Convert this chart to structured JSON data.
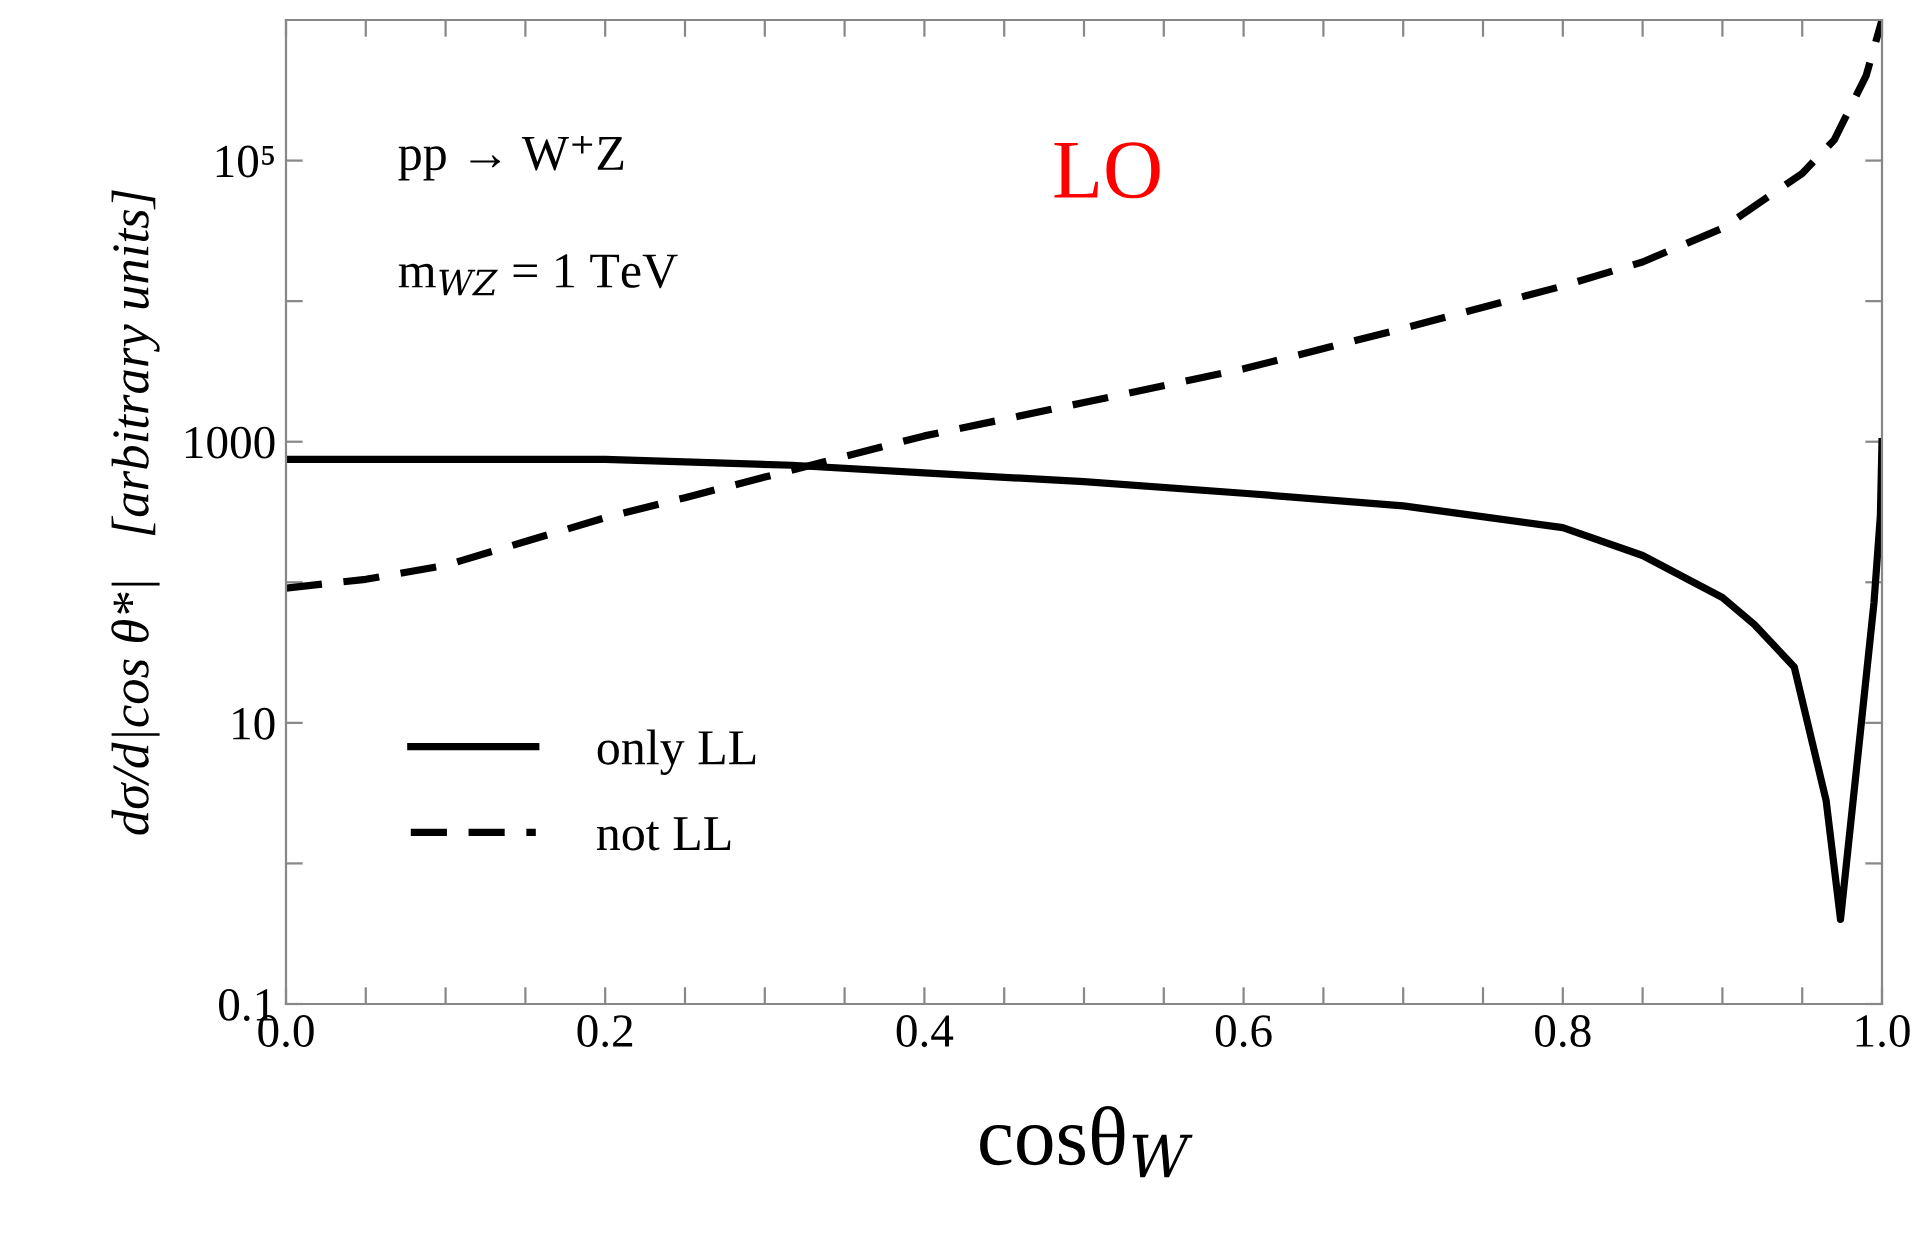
{
  "chart_data": {
    "type": "line",
    "xlabel": "cosθ$_{W}$",
    "ylabel": "dσ/d|cos θ*|   [arbitrary units]",
    "annotations": [
      "pp → W⁺Z",
      "m$_{WZ}$ = 1 TeV",
      "LO"
    ],
    "log": "y",
    "legend": "bottom left",
    "marker": "none",
    "grid": false,
    "xlim": [
      0,
      1
    ],
    "ylim": [
      0.1,
      1000000
    ],
    "xticks": [
      {
        "value": 0,
        "label": "0.0"
      },
      {
        "value": 0.05,
        "label": null
      },
      {
        "value": 0.1,
        "label": null
      },
      {
        "value": 0.15,
        "label": null
      },
      0.2,
      {
        "value": 0.25,
        "label": null
      },
      {
        "value": 0.3,
        "label": null
      },
      {
        "value": 0.35,
        "label": null
      },
      0.4,
      {
        "value": 0.45,
        "label": null
      },
      {
        "value": 0.5,
        "label": null
      },
      {
        "value": 0.55,
        "label": null
      },
      0.6,
      {
        "value": 0.65,
        "label": null
      },
      {
        "value": 0.7,
        "label": null
      },
      {
        "value": 0.75,
        "label": null
      },
      0.8,
      {
        "value": 0.85,
        "label": null
      },
      {
        "value": 0.9,
        "label": null
      },
      {
        "value": 0.95,
        "label": null
      },
      {
        "value": 1,
        "label": "1.0"
      }
    ],
    "yticks": [
      0.1,
      {
        "value": 1,
        "label": null
      },
      10,
      {
        "value": 100,
        "label": null
      },
      1000,
      {
        "value": 10000,
        "label": null
      },
      {
        "value": 100000,
        "label": "10⁵"
      }
    ],
    "series": [
      {
        "name": "only LL",
        "color": "#000000",
        "line_style": "solid",
        "x": [
          0,
          0.1,
          0.2,
          0.317,
          0.4,
          0.5,
          0.6,
          0.7,
          0.8,
          0.85,
          0.9,
          0.92,
          0.945,
          0.965,
          0.974,
          0.985,
          0.995,
          0.999,
          1.0
        ],
        "values": [
          750,
          750,
          750,
          680,
          600,
          520,
          430,
          350,
          245,
          155,
          78,
          50,
          25,
          2.8,
          0.4,
          6,
          72,
          300,
          1000
        ]
      },
      {
        "name": "not LL",
        "color": "#000000",
        "line_style": "dashed",
        "x": [
          0,
          0.05,
          0.1,
          0.15,
          0.2,
          0.25,
          0.3,
          0.4,
          0.5,
          0.6,
          0.7,
          0.8,
          0.85,
          0.9,
          0.95,
          0.97,
          0.99,
          1.0
        ],
        "values": [
          91,
          105,
          132,
          195,
          288,
          400,
          560,
          1100,
          1900,
          3300,
          6400,
          12800,
          19000,
          33000,
          81000,
          140000,
          400000,
          1000000
        ]
      }
    ]
  }
}
